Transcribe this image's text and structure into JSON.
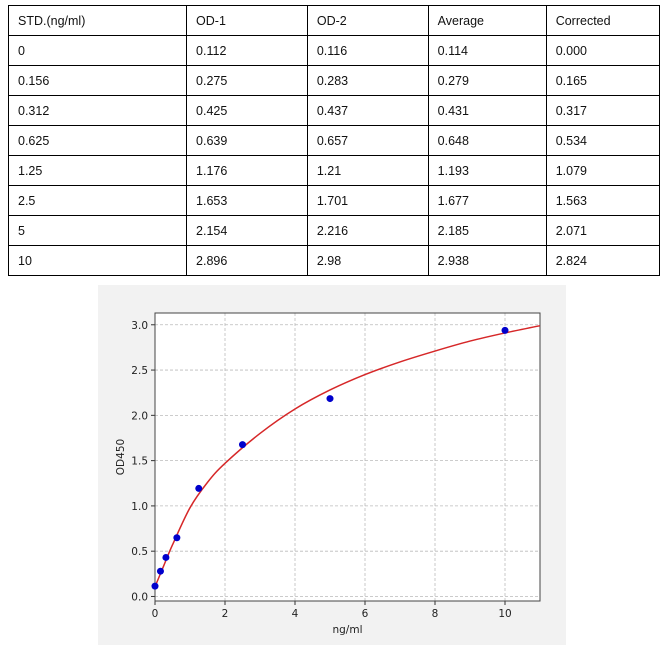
{
  "table": {
    "headers": [
      "STD.(ng/ml)",
      "OD-1",
      "OD-2",
      "Average",
      "Corrected"
    ],
    "rows": [
      [
        "0",
        "0.112",
        "0.116",
        "0.114",
        "0.000"
      ],
      [
        "0.156",
        "0.275",
        "0.283",
        "0.279",
        "0.165"
      ],
      [
        "0.312",
        "0.425",
        "0.437",
        "0.431",
        "0.317"
      ],
      [
        "0.625",
        "0.639",
        "0.657",
        "0.648",
        "0.534"
      ],
      [
        "1.25",
        "1.176",
        "1.21",
        "1.193",
        "1.079"
      ],
      [
        "2.5",
        "1.653",
        "1.701",
        "1.677",
        "1.563"
      ],
      [
        "5",
        "2.154",
        "2.216",
        "2.185",
        "2.071"
      ],
      [
        "10",
        "2.896",
        "2.98",
        "2.938",
        "2.824"
      ]
    ]
  },
  "chart_data": {
    "type": "scatter",
    "xlabel": "ng/ml",
    "ylabel": "OD450",
    "xlim": [
      0,
      11
    ],
    "ylim": [
      -0.05,
      3.13
    ],
    "xticks": [
      0,
      2,
      4,
      6,
      8,
      10
    ],
    "yticks": [
      0.0,
      0.5,
      1.0,
      1.5,
      2.0,
      2.5,
      3.0
    ],
    "grid": true,
    "points": {
      "x": [
        0,
        0.156,
        0.312,
        0.625,
        1.25,
        2.5,
        5,
        10
      ],
      "y": [
        0.114,
        0.279,
        0.431,
        0.648,
        1.193,
        1.677,
        2.185,
        2.938
      ],
      "color": "#0000cc"
    },
    "fit_curve": {
      "x": [
        0,
        0.1,
        0.25,
        0.5,
        1,
        1.5,
        2,
        3,
        4,
        5,
        6,
        7,
        8,
        9,
        10,
        11
      ],
      "y": [
        0.11,
        0.2,
        0.34,
        0.57,
        0.98,
        1.26,
        1.47,
        1.8,
        2.07,
        2.28,
        2.45,
        2.59,
        2.71,
        2.82,
        2.91,
        2.99
      ],
      "color": "#d62728"
    },
    "background": "#f2f2f2"
  }
}
